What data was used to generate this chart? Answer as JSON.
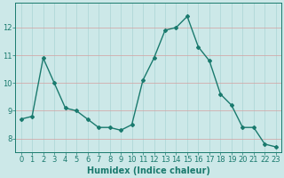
{
  "x": [
    0,
    1,
    2,
    3,
    4,
    5,
    6,
    7,
    8,
    9,
    10,
    11,
    12,
    13,
    14,
    15,
    16,
    17,
    18,
    19,
    20,
    21,
    22,
    23
  ],
  "y": [
    8.7,
    8.8,
    10.9,
    10.0,
    9.1,
    9.0,
    8.7,
    8.4,
    8.4,
    8.3,
    8.5,
    10.1,
    10.9,
    11.9,
    12.0,
    12.4,
    11.3,
    10.8,
    9.6,
    9.2,
    8.4,
    8.4,
    7.8,
    7.7
  ],
  "line_color": "#1a7a6e",
  "marker": "D",
  "marker_size": 2,
  "line_width": 1.0,
  "background_color": "#cce8e8",
  "grid_color_v": "#aad4d4",
  "grid_color_h": "#d4a0a0",
  "xlabel": "Humidex (Indice chaleur)",
  "xlabel_fontsize": 7,
  "tick_fontsize": 6,
  "ylim": [
    7.5,
    12.9
  ],
  "xlim": [
    -0.5,
    23.5
  ],
  "yticks": [
    8,
    9,
    10,
    11,
    12
  ],
  "xticks": [
    0,
    1,
    2,
    3,
    4,
    5,
    6,
    7,
    8,
    9,
    10,
    11,
    12,
    13,
    14,
    15,
    16,
    17,
    18,
    19,
    20,
    21,
    22,
    23
  ]
}
